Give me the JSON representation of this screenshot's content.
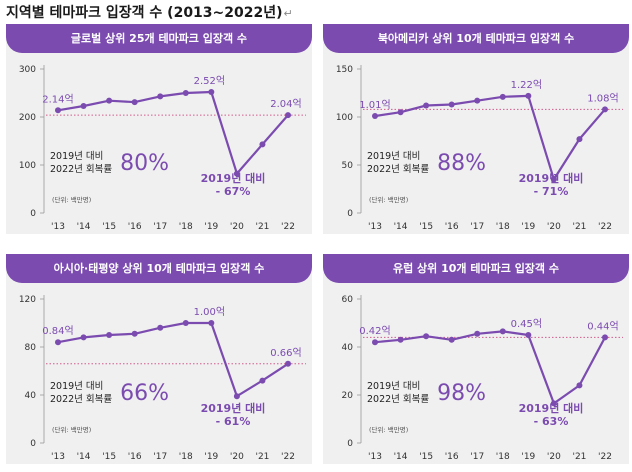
{
  "page": {
    "title": "지역별 테마파크 입장객 수 (2013~2022년)",
    "return_mark": "↵"
  },
  "colors": {
    "accent": "#7b4bb0",
    "ref_line": "#d25a8c",
    "panel_bg": "#f0f0f0"
  },
  "common": {
    "recovery_line1": "2019년 대비",
    "recovery_line2": "2022년 회복률",
    "drop_line1": "2019년 대비",
    "unit": "(단위: 백만명)"
  },
  "chart_data": [
    {
      "type": "line",
      "title": "글로벌 상위 25개 테마파크 입장객 수",
      "categories": [
        "'13",
        "'14",
        "'15",
        "'16",
        "'17",
        "'18",
        "'19",
        "'20",
        "'21",
        "'22"
      ],
      "values": [
        214,
        223,
        234,
        231,
        243,
        250,
        252,
        82,
        143,
        204
      ],
      "ylim": [
        0,
        300
      ],
      "yticks": [
        "0",
        "100",
        "200",
        "300"
      ],
      "labels": {
        "start": "2.14억",
        "peak": "2.52억",
        "end": "2.04억"
      },
      "recovery": "80%",
      "drop": "- 67%",
      "unit": "(단위: 백만명)"
    },
    {
      "type": "line",
      "title": "북아메리카 상위 10개 테마파크 입장객 수",
      "categories": [
        "'13",
        "'14",
        "'15",
        "'16",
        "'17",
        "'18",
        "'19",
        "'20",
        "'21",
        "'22"
      ],
      "values": [
        101,
        105,
        112,
        113,
        117,
        121,
        122,
        35,
        77,
        108
      ],
      "ylim": [
        0,
        150
      ],
      "yticks": [
        "0",
        "50",
        "100",
        "150"
      ],
      "labels": {
        "start": "1.01억",
        "peak": "1.22억",
        "end": "1.08억"
      },
      "recovery": "88%",
      "drop": "- 71%",
      "unit": "(단위: 백만명)"
    },
    {
      "type": "line",
      "title": "아시아·태평양 상위 10개 테마파크 입장객 수",
      "categories": [
        "'13",
        "'14",
        "'15",
        "'16",
        "'17",
        "'18",
        "'19",
        "'20",
        "'21",
        "'22"
      ],
      "values": [
        84,
        88,
        90,
        91,
        96,
        100,
        100,
        39,
        52,
        66
      ],
      "ylim": [
        0,
        120
      ],
      "yticks": [
        "0",
        "40",
        "80",
        "120"
      ],
      "labels": {
        "start": "0.84억",
        "peak": "1.00억",
        "end": "0.66억"
      },
      "recovery": "66%",
      "drop": "- 61%",
      "unit": "(단위: 백만명)"
    },
    {
      "type": "line",
      "title": "유럽 상위 10개 테마파크 입장객 수",
      "categories": [
        "'13",
        "'14",
        "'15",
        "'16",
        "'17",
        "'18",
        "'19",
        "'20",
        "'21",
        "'22"
      ],
      "values": [
        42,
        43,
        44.5,
        43,
        45.5,
        46.5,
        45,
        16.5,
        24,
        44
      ],
      "ylim": [
        0,
        60
      ],
      "yticks": [
        "0",
        "20",
        "40",
        "60"
      ],
      "labels": {
        "start": "0.42억",
        "peak": "0.45억",
        "end": "0.44억"
      },
      "recovery": "98%",
      "drop": "- 63%",
      "unit": "(단위: 백만명)"
    }
  ]
}
